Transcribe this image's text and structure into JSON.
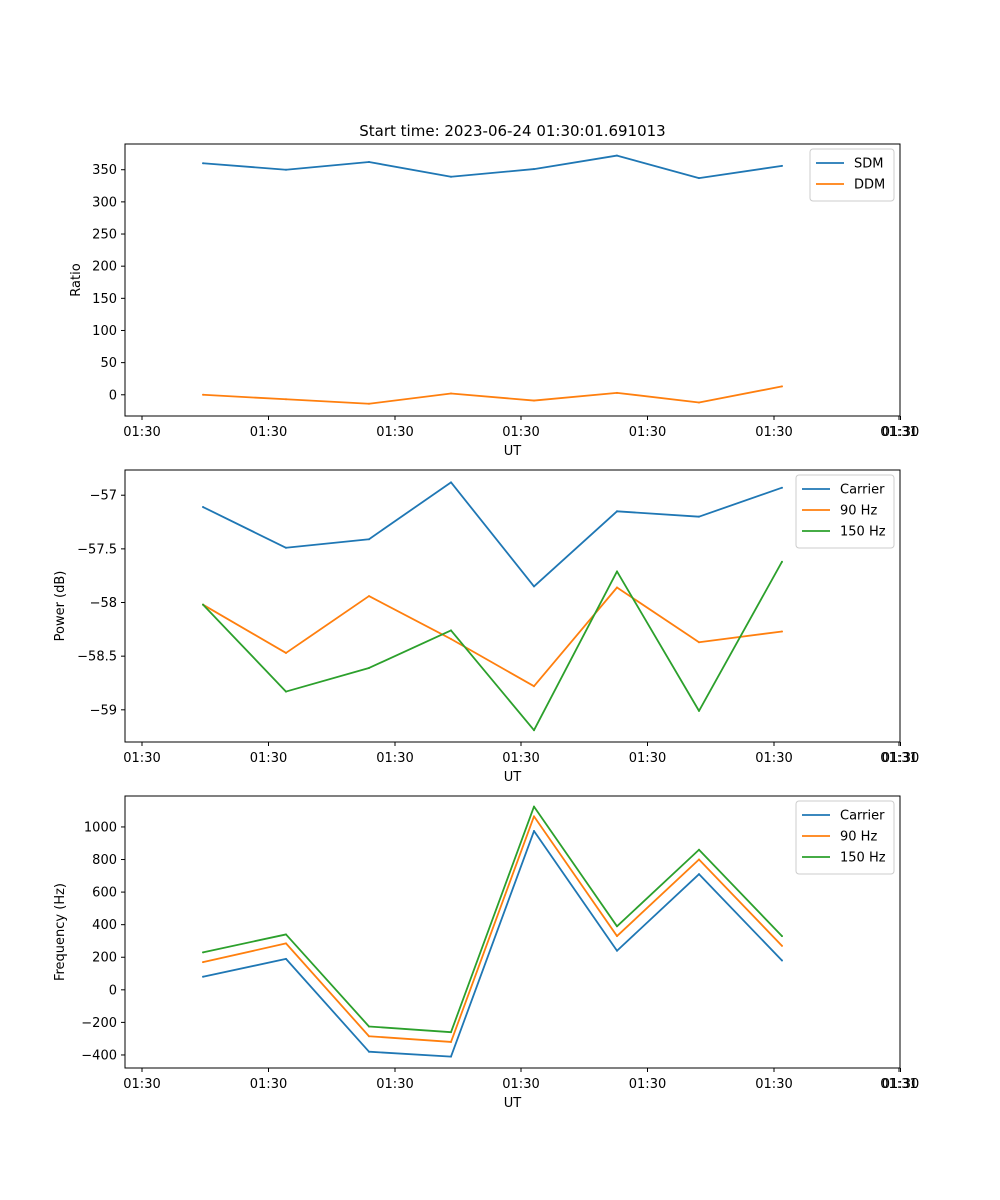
{
  "chart_data": [
    {
      "type": "line",
      "title": "Start time: 2023-06-24 01:30:01.691013",
      "xlabel": "UT",
      "ylabel": "Ratio",
      "xticks": [
        "01:30",
        "01:30",
        "01:30",
        "01:30",
        "01:30",
        "01:30",
        "01:30",
        "01:31"
      ],
      "ylim": [
        -33,
        390
      ],
      "yticks": [
        0,
        50,
        100,
        150,
        200,
        250,
        300,
        350
      ],
      "legend": "top-right",
      "grid": false,
      "series": [
        {
          "name": "SDM",
          "color": "#1f77b4",
          "values": [
            360,
            350,
            362,
            339,
            351,
            372,
            337,
            356
          ]
        },
        {
          "name": "DDM",
          "color": "#ff7f0e",
          "values": [
            0,
            -7,
            -14,
            2,
            -9,
            3,
            -12,
            13
          ]
        }
      ]
    },
    {
      "type": "line",
      "xlabel": "UT",
      "ylabel": "Power (dB)",
      "xticks": [
        "01:30",
        "01:30",
        "01:30",
        "01:30",
        "01:30",
        "01:30",
        "01:30",
        "01:31"
      ],
      "ylim": [
        -59.3,
        -56.765
      ],
      "yticks": [
        -59.0,
        -58.5,
        -58.0,
        -57.5,
        -57.0
      ],
      "legend": "top-right",
      "grid": false,
      "series": [
        {
          "name": "Carrier",
          "color": "#1f77b4",
          "values": [
            -57.11,
            -57.49,
            -57.41,
            -56.88,
            -57.85,
            -57.15,
            -57.2,
            -56.93
          ]
        },
        {
          "name": "90 Hz",
          "color": "#ff7f0e",
          "values": [
            -58.02,
            -58.47,
            -57.94,
            -58.34,
            -58.78,
            -57.86,
            -58.37,
            -58.27
          ]
        },
        {
          "name": "150 Hz",
          "color": "#2ca02c",
          "values": [
            -58.02,
            -58.83,
            -58.61,
            -58.26,
            -59.19,
            -57.71,
            -59.01,
            -57.62
          ]
        }
      ]
    },
    {
      "type": "line",
      "xlabel": "UT",
      "ylabel": "Frequency (Hz)",
      "xticks": [
        "01:30",
        "01:30",
        "01:30",
        "01:30",
        "01:30",
        "01:30",
        "01:30",
        "01:31"
      ],
      "ylim": [
        -480,
        1190
      ],
      "yticks": [
        -400,
        -200,
        0,
        200,
        400,
        600,
        800,
        1000
      ],
      "legend": "top-right",
      "grid": false,
      "series": [
        {
          "name": "Carrier",
          "color": "#1f77b4",
          "values": [
            80,
            190,
            -380,
            -410,
            975,
            240,
            710,
            180
          ]
        },
        {
          "name": "90 Hz",
          "color": "#ff7f0e",
          "values": [
            170,
            285,
            -285,
            -320,
            1065,
            330,
            800,
            270
          ]
        },
        {
          "name": "150 Hz",
          "color": "#2ca02c",
          "values": [
            230,
            340,
            -225,
            -260,
            1125,
            390,
            860,
            330
          ]
        }
      ]
    }
  ]
}
